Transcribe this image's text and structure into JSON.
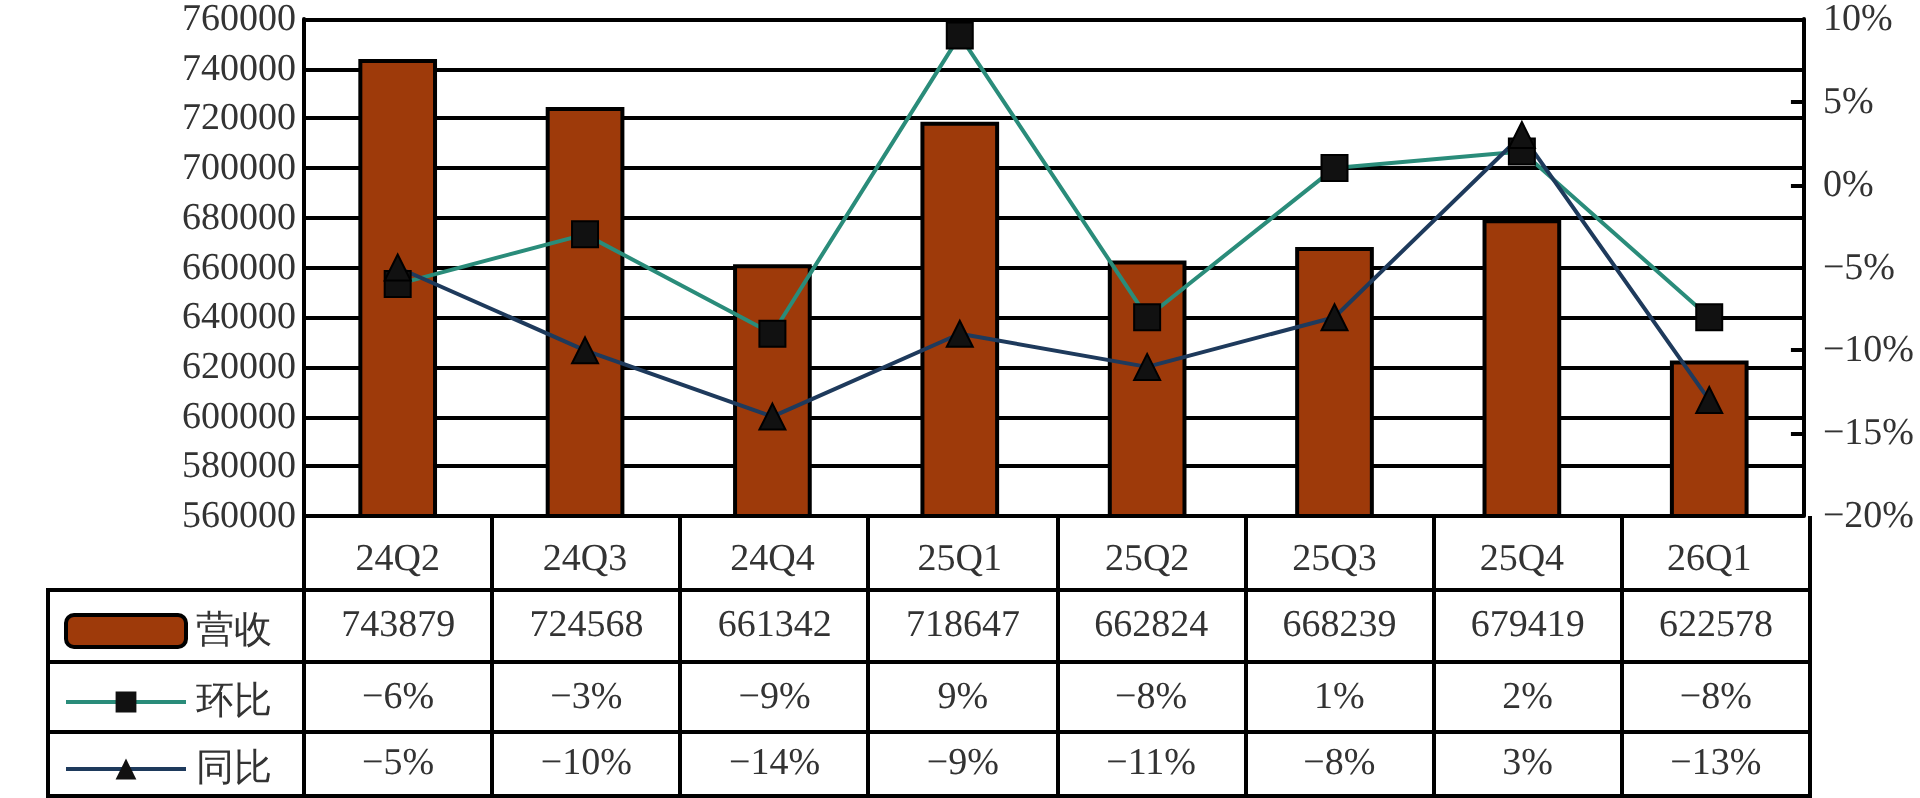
{
  "chart_data": {
    "type": "bar",
    "categories": [
      "24Q2",
      "24Q3",
      "24Q4",
      "25Q1",
      "25Q2",
      "25Q3",
      "25Q4",
      "26Q1"
    ],
    "ylim": [
      560000,
      760000
    ],
    "yticks": [
      560000,
      580000,
      600000,
      620000,
      640000,
      660000,
      680000,
      700000,
      720000,
      740000,
      760000
    ],
    "y2lim": [
      -20,
      10
    ],
    "y2ticks": [
      {
        "value": -20,
        "label": "−20%"
      },
      {
        "value": -15,
        "label": "−15%"
      },
      {
        "value": -10,
        "label": "−10%"
      },
      {
        "value": -5,
        "label": "−5%"
      },
      {
        "value": 0,
        "label": "0%"
      },
      {
        "value": 5,
        "label": "5%"
      },
      {
        "value": 10,
        "label": "10%"
      }
    ],
    "grid": "y",
    "legend": "bottom left",
    "series": [
      {
        "name": "营收",
        "color": "#9e3a0a",
        "values": [
          743879,
          724568,
          661342,
          718647,
          662824,
          668239,
          679419,
          622578
        ],
        "value_labels": [
          "743879",
          "724568",
          "661342",
          "718647",
          "662824",
          "668239",
          "679419",
          "622578"
        ]
      },
      {
        "name": "环比",
        "type": "line",
        "axis": "y2",
        "marker": "square",
        "color": "#2a8c7a",
        "values": [
          -6,
          -3,
          -9,
          9,
          -8,
          1,
          2,
          -8
        ],
        "value_labels": [
          "−6%",
          "−3%",
          "−9%",
          "9%",
          "−8%",
          "1%",
          "2%",
          "−8%"
        ]
      },
      {
        "name": "同比",
        "type": "line",
        "axis": "y2",
        "marker": "triangle",
        "color": "#1e3a5c",
        "values": [
          -5,
          -10,
          -14,
          -9,
          -11,
          -8,
          3,
          -13
        ],
        "value_labels": [
          "−5%",
          "−10%",
          "−14%",
          "−9%",
          "−11%",
          "−8%",
          "3%",
          "−13%"
        ]
      }
    ]
  }
}
